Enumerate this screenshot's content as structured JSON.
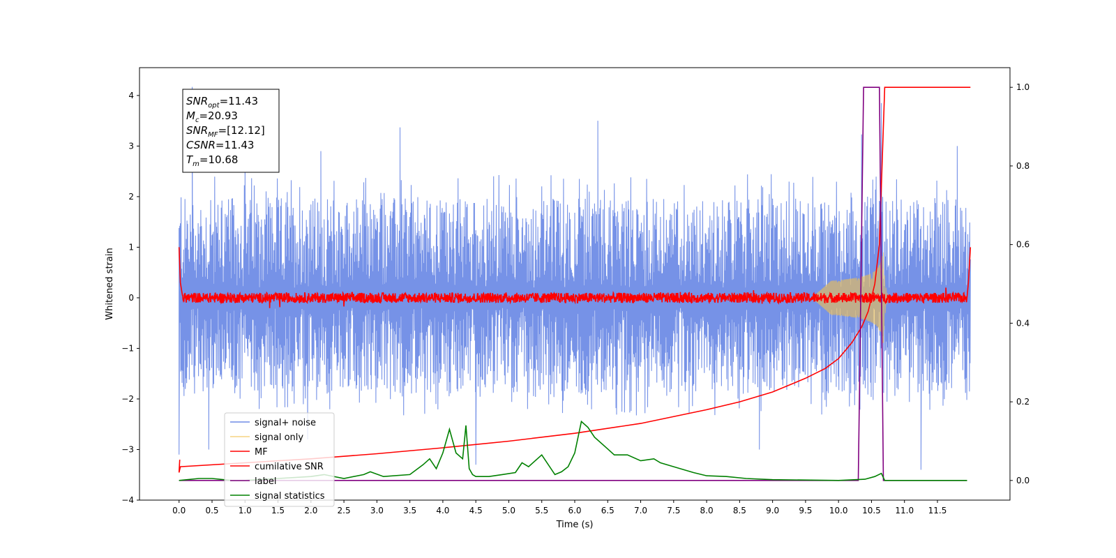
{
  "chart_data": {
    "type": "line",
    "xlabel": "Time (s)",
    "ylabel": "Whitened strain",
    "y2label": "",
    "xlim": [
      -0.6,
      12.6
    ],
    "ylim": [
      -4,
      4.55
    ],
    "y2lim": [
      -0.05,
      1.05
    ],
    "x_ticks": [
      0.0,
      0.5,
      1.0,
      1.5,
      2.0,
      2.5,
      3.0,
      3.5,
      4.0,
      4.5,
      5.0,
      5.5,
      6.0,
      6.5,
      7.0,
      7.5,
      8.0,
      8.5,
      9.0,
      9.5,
      10.0,
      10.5,
      11.0,
      11.5
    ],
    "x_tick_labels": [
      "0.0",
      "0.5",
      "1.0",
      "1.5",
      "2.0",
      "2.5",
      "3.0",
      "3.5",
      "4.0",
      "4.5",
      "5.0",
      "5.5",
      "6.0",
      "6.5",
      "7.0",
      "7.5",
      "8.0",
      "8.5",
      "9.0",
      "9.5",
      "10.0",
      "10.5",
      "11.0",
      "11.5"
    ],
    "y_ticks": [
      -4,
      -3,
      -2,
      -1,
      0,
      1,
      2,
      3,
      4
    ],
    "y_tick_labels": [
      "−4",
      "−3",
      "−2",
      "−1",
      "0",
      "1",
      "2",
      "3",
      "4"
    ],
    "y2_ticks": [
      0.0,
      0.2,
      0.4,
      0.6,
      0.8,
      1.0
    ],
    "y2_tick_labels": [
      "0.0",
      "0.2",
      "0.4",
      "0.6",
      "0.8",
      "1.0"
    ],
    "grid": false,
    "legend_position": "lower-left",
    "annotation": {
      "lines": [
        {
          "sym": "SNR",
          "sub": "opt",
          "rest": "=11.43"
        },
        {
          "sym": "M",
          "sub": "c",
          "rest": "=20.93"
        },
        {
          "sym": "SNR",
          "sub": "MF",
          "rest": "=[12.12]"
        },
        {
          "sym": "CSNR",
          "sub": "",
          "rest": "=11.43"
        },
        {
          "sym": "T",
          "sub": "m",
          "rest": "=10.68"
        }
      ]
    },
    "series": [
      {
        "name": "signal+ noise",
        "axis": "left",
        "color": "#6f8ce6",
        "style": "noise",
        "envelope": {
          "x": [
            0,
            12
          ],
          "upper": [
            2.0,
            2.0
          ],
          "lower": [
            -1.9,
            -1.9
          ]
        },
        "peaks_up": [
          [
            0.2,
            4.17
          ],
          [
            1.0,
            2.9
          ],
          [
            2.15,
            2.9
          ],
          [
            3.35,
            3.37
          ],
          [
            6.35,
            3.5
          ],
          [
            10.35,
            3.23
          ],
          [
            10.65,
            3.85
          ],
          [
            11.8,
            3.0
          ]
        ],
        "peaks_down": [
          [
            0.0,
            -3.1
          ],
          [
            0.45,
            -3.0
          ],
          [
            1.95,
            -2.8
          ],
          [
            4.5,
            -3.3
          ],
          [
            8.8,
            -3.0
          ],
          [
            11.25,
            -3.4
          ]
        ]
      },
      {
        "name": "signal only",
        "axis": "left",
        "color": "#f2c14e",
        "style": "chirp",
        "t_merger": 10.68,
        "x_start": 9.6,
        "amp_max": 0.85
      },
      {
        "name": "MF",
        "axis": "left",
        "color": "#ff0000",
        "style": "mf",
        "x": [
          0,
          0.05,
          12
        ],
        "y": [
          1.0,
          0.0,
          1.0
        ],
        "jitter_amp": 0.1
      },
      {
        "name": "cumilative SNR",
        "axis": "right",
        "color": "#ff0000",
        "style": "line",
        "x": [
          0.0,
          0.02,
          1.0,
          2.0,
          3.0,
          4.0,
          5.0,
          6.0,
          7.0,
          8.0,
          8.5,
          9.0,
          9.5,
          9.8,
          10.0,
          10.2,
          10.35,
          10.45,
          10.55,
          10.62,
          10.66,
          10.7,
          10.8,
          12.0
        ],
        "y": [
          0.02,
          0.035,
          0.045,
          0.055,
          0.068,
          0.083,
          0.1,
          0.12,
          0.145,
          0.18,
          0.2,
          0.225,
          0.26,
          0.285,
          0.31,
          0.35,
          0.39,
          0.43,
          0.5,
          0.6,
          0.8,
          1.0,
          1.0,
          1.0
        ]
      },
      {
        "name": "label",
        "axis": "right",
        "color": "#800080",
        "style": "line",
        "x": [
          0.0,
          10.3,
          10.38,
          10.62,
          10.68,
          11.95
        ],
        "y": [
          0.0,
          0.0,
          1.0,
          1.0,
          0.0,
          0.0
        ]
      },
      {
        "name": "signal statistics",
        "axis": "right",
        "color": "#008000",
        "style": "line",
        "x": [
          0.0,
          0.3,
          0.5,
          0.8,
          1.0,
          1.5,
          2.0,
          2.2,
          2.5,
          2.8,
          2.9,
          3.1,
          3.5,
          3.7,
          3.8,
          3.9,
          4.0,
          4.1,
          4.2,
          4.3,
          4.35,
          4.4,
          4.45,
          4.5,
          4.7,
          4.9,
          5.1,
          5.2,
          5.3,
          5.5,
          5.7,
          5.8,
          5.9,
          6.0,
          6.1,
          6.2,
          6.3,
          6.5,
          6.6,
          6.8,
          7.0,
          7.2,
          7.3,
          7.5,
          7.8,
          8.0,
          8.3,
          8.6,
          9.0,
          10.0,
          10.4,
          10.55,
          10.65,
          10.7,
          11.95
        ],
        "y": [
          0.0,
          0.005,
          0.005,
          0.0,
          0.0,
          0.005,
          0.01,
          0.015,
          0.005,
          0.015,
          0.022,
          0.01,
          0.015,
          0.04,
          0.055,
          0.03,
          0.07,
          0.13,
          0.07,
          0.055,
          0.14,
          0.03,
          0.015,
          0.01,
          0.01,
          0.015,
          0.02,
          0.045,
          0.035,
          0.065,
          0.015,
          0.022,
          0.035,
          0.07,
          0.15,
          0.135,
          0.11,
          0.08,
          0.065,
          0.065,
          0.05,
          0.055,
          0.045,
          0.035,
          0.02,
          0.012,
          0.01,
          0.005,
          0.002,
          0.0,
          0.003,
          0.01,
          0.018,
          0.0,
          0.0
        ]
      }
    ]
  }
}
